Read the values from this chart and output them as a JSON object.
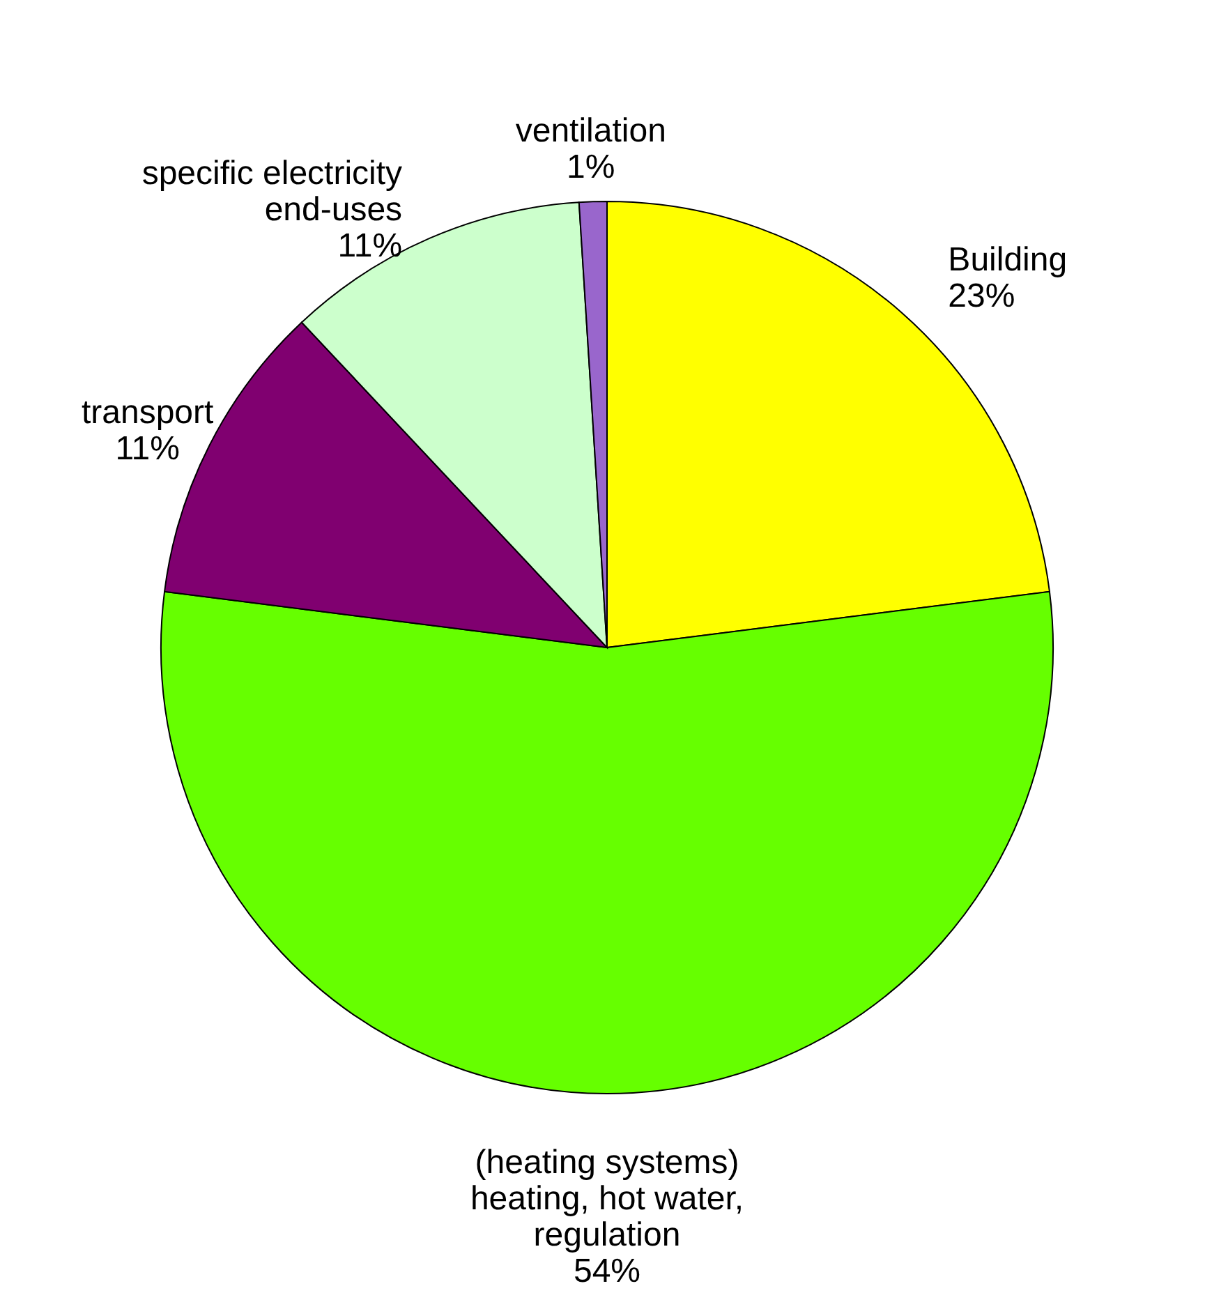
{
  "chart_data": {
    "type": "pie",
    "categories": [
      "Building",
      "(heating systems)\nheating, hot water,\nregulation",
      "transport",
      "specific electricity\nend-uses",
      "ventilation"
    ],
    "values": [
      23,
      54,
      11,
      11,
      1
    ],
    "value_labels": [
      "23%",
      "54%",
      "11%",
      "11%",
      "1%"
    ],
    "colors": [
      "#ffff00",
      "#66ff00",
      "#800070",
      "#ccffcc",
      "#9966cc"
    ],
    "legend": false
  }
}
